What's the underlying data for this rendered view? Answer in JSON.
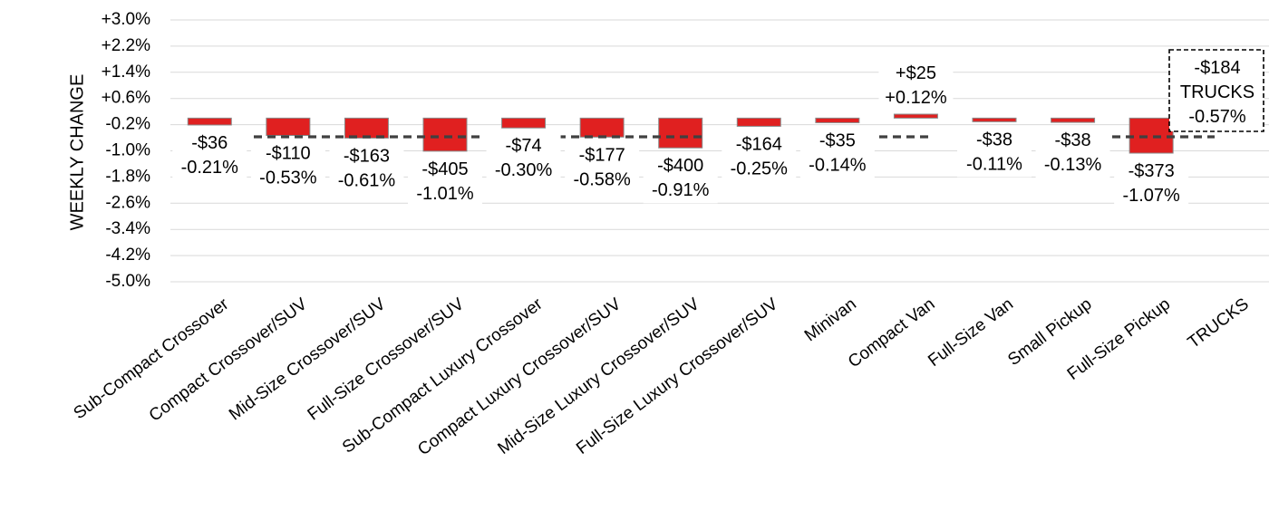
{
  "chart_data": {
    "type": "bar",
    "ylabel": "WEEKLY CHANGE",
    "ylim": [
      -5.0,
      3.0
    ],
    "yticks": [
      "+3.0%",
      "+2.2%",
      "+1.4%",
      "+0.6%",
      "-0.2%",
      "-1.0%",
      "-1.8%",
      "-2.6%",
      "-3.4%",
      "-4.2%",
      "-5.0%"
    ],
    "grid": true,
    "categories": [
      "Sub-Compact Crossover",
      "Compact Crossover/SUV",
      "Mid-Size Crossover/SUV",
      "Full-Size Crossover/SUV",
      "Sub-Compact Luxury Crossover",
      "Compact Luxury Crossover/SUV",
      "Mid-Size Luxury Crossover/SUV",
      "Full-Size Luxury Crossover/SUV",
      "Minivan",
      "Compact Van",
      "Full-Size Van",
      "Small Pickup",
      "Full-Size Pickup",
      "TRUCKS"
    ],
    "values": [
      -0.21,
      -0.53,
      -0.61,
      -1.01,
      -0.3,
      -0.58,
      -0.91,
      -0.25,
      -0.14,
      0.12,
      -0.11,
      -0.13,
      -1.07,
      null
    ],
    "dollar_labels": [
      "-$36",
      "-$110",
      "-$163",
      "-$405",
      "-$74",
      "-$177",
      "-$400",
      "-$164",
      "-$35",
      "+$25",
      "-$38",
      "-$38",
      "-$373",
      ""
    ],
    "percent_labels": [
      "-0.21%",
      "-0.53%",
      "-0.61%",
      "-1.01%",
      "-0.30%",
      "-0.58%",
      "-0.91%",
      "-0.25%",
      "-0.14%",
      "+0.12%",
      "-0.11%",
      "-0.13%",
      "-1.07%",
      ""
    ],
    "average_line": {
      "name": "TRUCKS",
      "value": -0.57,
      "dollar_label": "-$184",
      "percent_label": "-0.57%"
    },
    "colors": {
      "bar": "#e02020",
      "bar_edge": "#8a8a8a",
      "average_line": "#404040",
      "grid": "#d9d9d9"
    }
  }
}
